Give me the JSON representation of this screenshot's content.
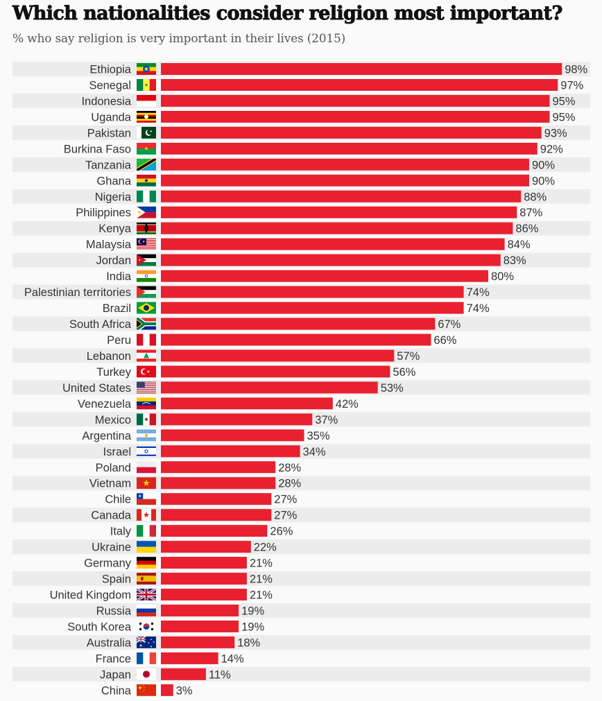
{
  "chart_data": {
    "type": "bar",
    "orientation": "horizontal",
    "title": "Which nationalities consider religion most important?",
    "subtitle": "% who say religion is very important in their lives (2015)",
    "xlabel": "",
    "ylabel": "",
    "xlim": [
      0,
      100
    ],
    "grid": false,
    "legend": "none",
    "value_suffix": "%",
    "bar_color": "#e8202f",
    "stripe_color": "#ececec",
    "categories": [
      "Ethiopia",
      "Senegal",
      "Indonesia",
      "Uganda",
      "Pakistan",
      "Burkina Faso",
      "Tanzania",
      "Ghana",
      "Nigeria",
      "Philippines",
      "Kenya",
      "Malaysia",
      "Jordan",
      "India",
      "Palestinian territories",
      "Brazil",
      "South Africa",
      "Peru",
      "Lebanon",
      "Turkey",
      "United States",
      "Venezuela",
      "Mexico",
      "Argentina",
      "Israel",
      "Poland",
      "Vietnam",
      "Chile",
      "Canada",
      "Italy",
      "Ukraine",
      "Germany",
      "Spain",
      "United Kingdom",
      "Russia",
      "South Korea",
      "Australia",
      "France",
      "Japan",
      "China"
    ],
    "values": [
      98,
      97,
      95,
      95,
      93,
      92,
      90,
      90,
      88,
      87,
      86,
      84,
      83,
      80,
      74,
      74,
      67,
      66,
      57,
      56,
      53,
      42,
      37,
      35,
      34,
      28,
      28,
      27,
      27,
      26,
      22,
      21,
      21,
      21,
      19,
      19,
      18,
      14,
      11,
      3
    ],
    "flags": [
      "flag-ethiopia",
      "flag-senegal",
      "flag-indonesia",
      "flag-uganda",
      "flag-pakistan",
      "flag-burkina-faso",
      "flag-tanzania",
      "flag-ghana",
      "flag-nigeria",
      "flag-philippines",
      "flag-kenya",
      "flag-malaysia",
      "flag-jordan",
      "flag-india",
      "flag-palestine",
      "flag-brazil",
      "flag-south-africa",
      "flag-peru",
      "flag-lebanon",
      "flag-turkey",
      "flag-united-states",
      "flag-venezuela",
      "flag-mexico",
      "flag-argentina",
      "flag-israel",
      "flag-poland",
      "flag-vietnam",
      "flag-chile",
      "flag-canada",
      "flag-italy",
      "flag-ukraine",
      "flag-germany",
      "flag-spain",
      "flag-united-kingdom",
      "flag-russia",
      "flag-south-korea",
      "flag-australia",
      "flag-france",
      "flag-japan",
      "flag-china"
    ]
  }
}
